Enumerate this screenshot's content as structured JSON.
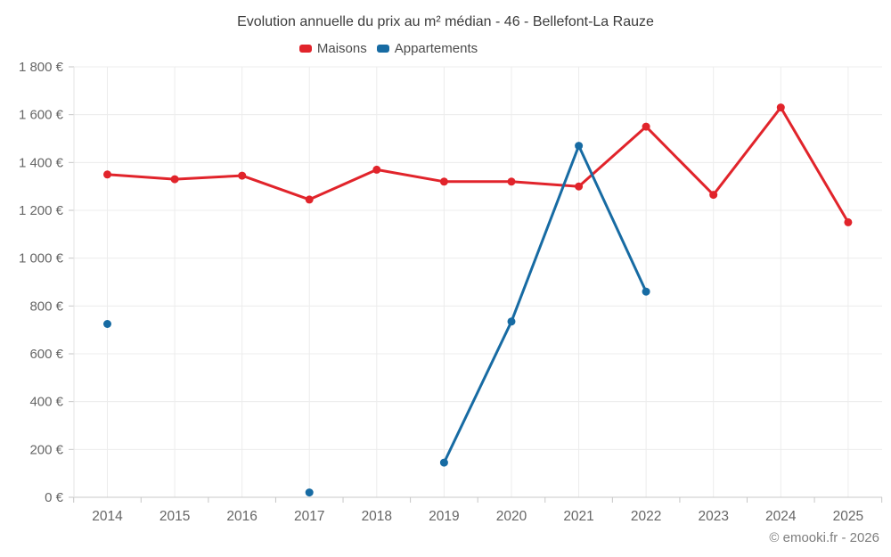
{
  "footer": {
    "credit": "© emooki.fr - 2026"
  },
  "chart_data": {
    "type": "line",
    "title": "Evolution annuelle du prix au m² médian - 46 - Bellefont-La Rauze",
    "categories": [
      "2014",
      "2015",
      "2016",
      "2017",
      "2018",
      "2019",
      "2020",
      "2021",
      "2022",
      "2023",
      "2024",
      "2025"
    ],
    "series": [
      {
        "name": "Maisons",
        "color": "#e1242b",
        "values": [
          1350,
          1330,
          1345,
          1245,
          1370,
          1320,
          1320,
          1300,
          1550,
          1265,
          1630,
          1150
        ]
      },
      {
        "name": "Appartements",
        "color": "#176ba3",
        "values": [
          725,
          null,
          null,
          20,
          null,
          145,
          735,
          1470,
          860,
          null,
          null,
          null
        ]
      }
    ],
    "ylim": [
      0,
      1800
    ],
    "ytick_step": 200,
    "ytick_labels": [
      "0 €",
      "200 €",
      "400 €",
      "600 €",
      "800 €",
      "1 000 €",
      "1 200 €",
      "1 400 €",
      "1 600 €",
      "1 800 €"
    ],
    "grid": true,
    "legend_position": "top",
    "colors": {
      "grid": "#ececec",
      "axis_bottom": "#c9c9c9",
      "axis_left": "#e4e4e4",
      "tick": "#c6c6c6",
      "label": "#666666"
    }
  }
}
